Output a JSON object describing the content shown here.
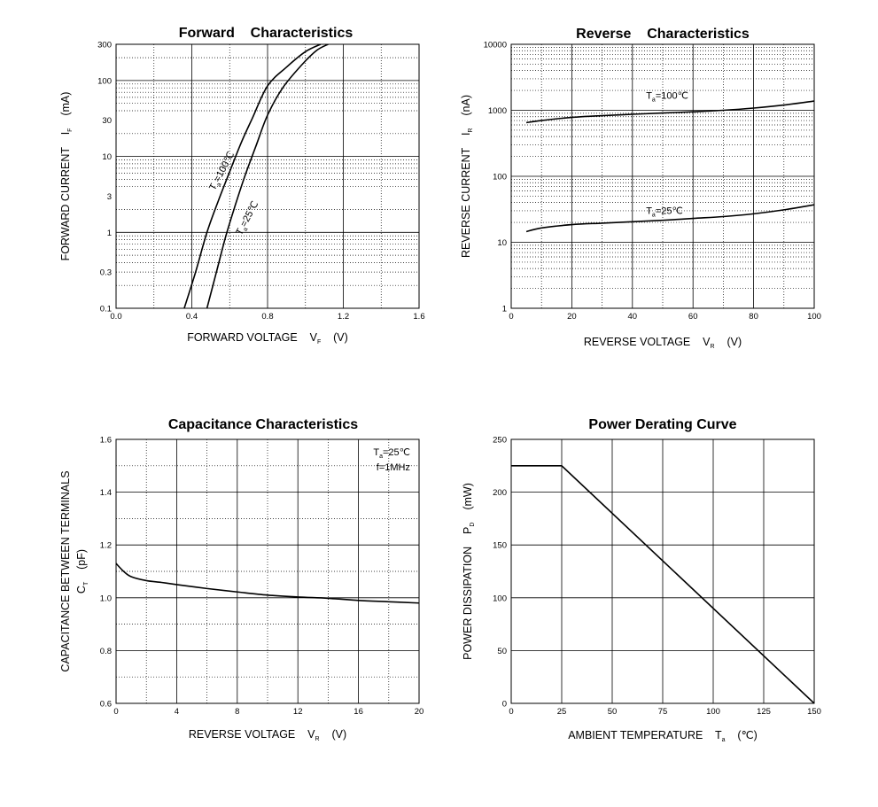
{
  "chart_data": [
    {
      "id": "forward",
      "type": "line",
      "title": "Forward    Characteristics",
      "xlabel": "FORWARD VOLTAGE    V",
      "xlabel_sub": "F",
      "xlabel_unit": "(V)",
      "ylabel": "FORWARD CURRENT    I",
      "ylabel_sub": "F",
      "ylabel_unit": "(mA)",
      "x_scale": "linear",
      "y_scale": "log",
      "xlim": [
        0,
        1.6
      ],
      "ylim": [
        0.1,
        300
      ],
      "x_ticks": [
        0.0,
        0.4,
        0.8,
        1.2,
        1.6
      ],
      "x_tick_labels": [
        "0.0",
        "0.4",
        "0.8",
        "1.2",
        "1.6"
      ],
      "y_ticks": [
        0.1,
        0.3,
        1,
        3,
        10,
        30,
        100,
        300
      ],
      "y_tick_labels": [
        "0.1",
        "0.3",
        "1",
        "3",
        "10",
        "30",
        "100",
        "300"
      ],
      "grid": true,
      "series": [
        {
          "name": "=100℃",
          "label_prefix": "T",
          "label_sub": "a",
          "x": [
            0.36,
            0.42,
            0.48,
            0.54,
            0.6,
            0.66,
            0.72,
            0.8,
            0.9,
            1.0,
            1.08
          ],
          "y": [
            0.1,
            0.3,
            1.0,
            2.6,
            6.3,
            15,
            32,
            85,
            150,
            240,
            300
          ]
        },
        {
          "name": "=25℃",
          "label_prefix": "T",
          "label_sub": "a",
          "x": [
            0.48,
            0.53,
            0.58,
            0.63,
            0.68,
            0.74,
            0.8,
            0.88,
            0.98,
            1.06,
            1.12
          ],
          "y": [
            0.1,
            0.3,
            0.9,
            2.3,
            5.5,
            14,
            35,
            80,
            160,
            250,
            300
          ]
        }
      ]
    },
    {
      "id": "reverse",
      "type": "line",
      "title": "Reverse    Characteristics",
      "xlabel": "REVERSE VOLTAGE    V",
      "xlabel_sub": "R",
      "xlabel_unit": "(V)",
      "ylabel": "REVERSE CURRENT    I",
      "ylabel_sub": "R",
      "ylabel_unit": "(nA)",
      "x_scale": "linear",
      "y_scale": "log",
      "xlim": [
        0,
        100
      ],
      "ylim": [
        1,
        10000
      ],
      "x_ticks": [
        0,
        20,
        40,
        60,
        80,
        100
      ],
      "x_tick_labels": [
        "0",
        "20",
        "40",
        "60",
        "80",
        "100"
      ],
      "y_ticks": [
        1,
        10,
        100,
        1000,
        10000
      ],
      "y_tick_labels": [
        "1",
        "10",
        "100",
        "1000",
        "10000"
      ],
      "grid": true,
      "series": [
        {
          "name": "=100℃",
          "label_prefix": "T",
          "label_sub": "a",
          "x": [
            5,
            10,
            20,
            30,
            40,
            50,
            60,
            70,
            80,
            90,
            100
          ],
          "y": [
            650,
            700,
            780,
            830,
            870,
            910,
            950,
            1000,
            1080,
            1200,
            1380
          ]
        },
        {
          "name": "=25℃",
          "label_prefix": "T",
          "label_sub": "a",
          "x": [
            5,
            10,
            20,
            30,
            40,
            50,
            60,
            70,
            80,
            90,
            100
          ],
          "y": [
            14.5,
            16.5,
            18.5,
            19.5,
            20.5,
            21.5,
            23,
            24.5,
            27,
            31,
            37
          ]
        }
      ]
    },
    {
      "id": "capacitance",
      "type": "line",
      "title": "Capacitance Characteristics",
      "xlabel": "REVERSE VOLTAGE    V",
      "xlabel_sub": "R",
      "xlabel_unit": "(V)",
      "ylabel": "CAPACITANCE BETWEEN TERMINALS",
      "ylabel2": "C",
      "ylabel2_sub": "T",
      "ylabel_unit": "(pF)",
      "x_scale": "linear",
      "y_scale": "linear",
      "xlim": [
        0,
        20
      ],
      "ylim": [
        0.6,
        1.6
      ],
      "x_ticks": [
        0,
        4,
        8,
        12,
        16,
        20
      ],
      "x_tick_labels": [
        "0",
        "4",
        "8",
        "12",
        "16",
        "20"
      ],
      "y_ticks": [
        0.6,
        0.8,
        1.0,
        1.2,
        1.4,
        1.6
      ],
      "y_tick_labels": [
        "0.6",
        "0.8",
        "1.0",
        "1.2",
        "1.4",
        "1.6"
      ],
      "grid": true,
      "annotation": {
        "line1_prefix": "T",
        "line1_sub": "a",
        "line1_rest": "=25℃",
        "line2": "f=1MHz"
      },
      "series": [
        {
          "x": [
            0,
            0.5,
            1,
            2,
            3,
            4,
            6,
            8,
            10,
            12,
            14,
            16,
            18,
            20
          ],
          "y": [
            1.13,
            1.1,
            1.08,
            1.065,
            1.058,
            1.05,
            1.035,
            1.022,
            1.01,
            1.003,
            0.998,
            0.99,
            0.985,
            0.98
          ]
        }
      ]
    },
    {
      "id": "derating",
      "type": "line",
      "title": "Power Derating Curve",
      "xlabel": "AMBIENT TEMPERATURE    T",
      "xlabel_sub": "a",
      "xlabel_unit": "(℃)",
      "ylabel": "POWER DISSIPATION    P",
      "ylabel_sub": "D",
      "ylabel_unit": "(mW)",
      "x_scale": "linear",
      "y_scale": "linear",
      "xlim": [
        0,
        150
      ],
      "ylim": [
        0,
        250
      ],
      "x_ticks": [
        0,
        25,
        50,
        75,
        100,
        125,
        150
      ],
      "x_tick_labels": [
        "0",
        "25",
        "50",
        "75",
        "100",
        "125",
        "150"
      ],
      "y_ticks": [
        0,
        50,
        100,
        150,
        200,
        250
      ],
      "y_tick_labels": [
        "0",
        "50",
        "100",
        "150",
        "200",
        "250"
      ],
      "grid": true,
      "series": [
        {
          "x": [
            0,
            25,
            150
          ],
          "y": [
            225,
            225,
            0
          ]
        }
      ]
    }
  ]
}
